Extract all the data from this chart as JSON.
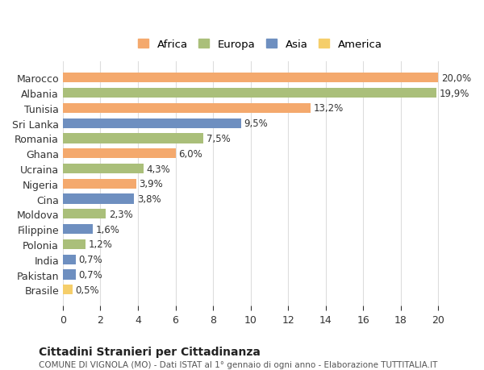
{
  "countries": [
    "Marocco",
    "Albania",
    "Tunisia",
    "Sri Lanka",
    "Romania",
    "Ghana",
    "Ucraina",
    "Nigeria",
    "Cina",
    "Moldova",
    "Filippine",
    "Polonia",
    "India",
    "Pakistan",
    "Brasile"
  ],
  "values": [
    20.0,
    19.9,
    13.2,
    9.5,
    7.5,
    6.0,
    4.3,
    3.9,
    3.8,
    2.3,
    1.6,
    1.2,
    0.7,
    0.7,
    0.5
  ],
  "labels": [
    "20,0%",
    "19,9%",
    "13,2%",
    "9,5%",
    "7,5%",
    "6,0%",
    "4,3%",
    "3,9%",
    "3,8%",
    "2,3%",
    "1,6%",
    "1,2%",
    "0,7%",
    "0,7%",
    "0,5%"
  ],
  "continents": [
    "Africa",
    "Europa",
    "Africa",
    "Asia",
    "Europa",
    "Africa",
    "Europa",
    "Africa",
    "Asia",
    "Europa",
    "Asia",
    "Europa",
    "Asia",
    "Asia",
    "America"
  ],
  "colors": {
    "Africa": "#F4A96D",
    "Europa": "#AABF7A",
    "Asia": "#6E8FC0",
    "America": "#F5CE6A"
  },
  "legend_order": [
    "Africa",
    "Europa",
    "Asia",
    "America"
  ],
  "title": "Cittadini Stranieri per Cittadinanza",
  "subtitle": "COMUNE DI VIGNOLA (MO) - Dati ISTAT al 1° gennaio di ogni anno - Elaborazione TUTTITALIA.IT",
  "xlim": [
    0,
    21
  ],
  "xticks": [
    0,
    2,
    4,
    6,
    8,
    10,
    12,
    14,
    16,
    18,
    20
  ],
  "background_color": "#ffffff",
  "grid_color": "#dddddd"
}
